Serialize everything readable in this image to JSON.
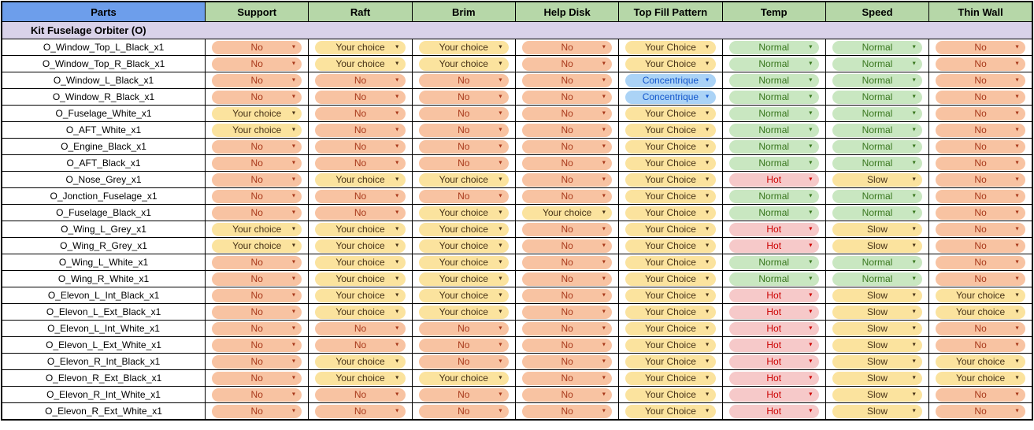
{
  "table": {
    "columns": [
      {
        "label": "Parts",
        "key": "parts"
      },
      {
        "label": "Support",
        "key": "support"
      },
      {
        "label": "Raft",
        "key": "raft"
      },
      {
        "label": "Brim",
        "key": "brim"
      },
      {
        "label": "Help Disk",
        "key": "help-disk"
      },
      {
        "label": "Top Fill Pattern",
        "key": "top-fill-pattern"
      },
      {
        "label": "Temp",
        "key": "temp"
      },
      {
        "label": "Speed",
        "key": "speed"
      },
      {
        "label": "Thin Wall",
        "key": "thin-wall"
      }
    ],
    "section_title": "Kit Fuselage Orbiter (O)",
    "rows": [
      {
        "part": "O_Window_Top_L_Black_x1",
        "cells": [
          "No",
          "Your choice",
          "Your choice",
          "No",
          "Your Choice",
          "Normal",
          "Normal",
          "No"
        ]
      },
      {
        "part": "O_Window_Top_R_Black_x1",
        "cells": [
          "No",
          "Your choice",
          "Your choice",
          "No",
          "Your Choice",
          "Normal",
          "Normal",
          "No"
        ]
      },
      {
        "part": "O_Window_L_Black_x1",
        "cells": [
          "No",
          "No",
          "No",
          "No",
          "Concentrique",
          "Normal",
          "Normal",
          "No"
        ]
      },
      {
        "part": "O_Window_R_Black_x1",
        "cells": [
          "No",
          "No",
          "No",
          "No",
          "Concentrique",
          "Normal",
          "Normal",
          "No"
        ]
      },
      {
        "part": "O_Fuselage_White_x1",
        "cells": [
          "Your choice",
          "No",
          "No",
          "No",
          "Your Choice",
          "Normal",
          "Normal",
          "No"
        ]
      },
      {
        "part": "O_AFT_White_x1",
        "cells": [
          "Your choice",
          "No",
          "No",
          "No",
          "Your Choice",
          "Normal",
          "Normal",
          "No"
        ]
      },
      {
        "part": "O_Engine_Black_x1",
        "cells": [
          "No",
          "No",
          "No",
          "No",
          "Your Choice",
          "Normal",
          "Normal",
          "No"
        ]
      },
      {
        "part": "O_AFT_Black_x1",
        "cells": [
          "No",
          "No",
          "No",
          "No",
          "Your Choice",
          "Normal",
          "Normal",
          "No"
        ]
      },
      {
        "part": "O_Nose_Grey_x1",
        "cells": [
          "No",
          "Your choice",
          "Your choice",
          "No",
          "Your Choice",
          "Hot",
          "Slow",
          "No"
        ]
      },
      {
        "part": "O_Jonction_Fuselage_x1",
        "cells": [
          "No",
          "No",
          "No",
          "No",
          "Your Choice",
          "Normal",
          "Normal",
          "No"
        ]
      },
      {
        "part": "O_Fuselage_Black_x1",
        "cells": [
          "No",
          "No",
          "Your choice",
          "Your choice",
          "Your Choice",
          "Normal",
          "Normal",
          "No"
        ]
      },
      {
        "part": "O_Wing_L_Grey_x1",
        "cells": [
          "Your choice",
          "Your choice",
          "Your choice",
          "No",
          "Your Choice",
          "Hot",
          "Slow",
          "No"
        ]
      },
      {
        "part": "O_Wing_R_Grey_x1",
        "cells": [
          "Your choice",
          "Your choice",
          "Your choice",
          "No",
          "Your Choice",
          "Hot",
          "Slow",
          "No"
        ]
      },
      {
        "part": "O_Wing_L_White_x1",
        "cells": [
          "No",
          "Your choice",
          "Your choice",
          "No",
          "Your Choice",
          "Normal",
          "Normal",
          "No"
        ]
      },
      {
        "part": "O_Wing_R_White_x1",
        "cells": [
          "No",
          "Your choice",
          "Your choice",
          "No",
          "Your Choice",
          "Normal",
          "Normal",
          "No"
        ]
      },
      {
        "part": "O_Elevon_L_Int_Black_x1",
        "cells": [
          "No",
          "Your choice",
          "Your choice",
          "No",
          "Your Choice",
          "Hot",
          "Slow",
          "Your choice"
        ]
      },
      {
        "part": "O_Elevon_L_Ext_Black_x1",
        "cells": [
          "No",
          "Your choice",
          "Your choice",
          "No",
          "Your Choice",
          "Hot",
          "Slow",
          "Your choice"
        ]
      },
      {
        "part": "O_Elevon_L_Int_White_x1",
        "cells": [
          "No",
          "No",
          "No",
          "No",
          "Your Choice",
          "Hot",
          "Slow",
          "No"
        ]
      },
      {
        "part": "O_Elevon_L_Ext_White_x1",
        "cells": [
          "No",
          "No",
          "No",
          "No",
          "Your Choice",
          "Hot",
          "Slow",
          "No"
        ]
      },
      {
        "part": "O_Elevon_R_Int_Black_x1",
        "cells": [
          "No",
          "Your choice",
          "No",
          "No",
          "Your Choice",
          "Hot",
          "Slow",
          "Your choice"
        ]
      },
      {
        "part": "O_Elevon_R_Ext_Black_x1",
        "cells": [
          "No",
          "Your choice",
          "Your choice",
          "No",
          "Your Choice",
          "Hot",
          "Slow",
          "Your choice"
        ]
      },
      {
        "part": "O_Elevon_R_Int_White_x1",
        "cells": [
          "No",
          "No",
          "No",
          "No",
          "Your Choice",
          "Hot",
          "Slow",
          "No"
        ]
      },
      {
        "part": "O_Elevon_R_Ext_White_x1",
        "cells": [
          "No",
          "No",
          "No",
          "No",
          "Your Choice",
          "Hot",
          "Slow",
          "No"
        ]
      }
    ]
  },
  "icons": {
    "dropdown_arrow": "▼"
  },
  "colors": {
    "header_parts_bg": "#6D9EEB",
    "header_settings_bg": "#B6D7A8",
    "section_bg": "#D9D2E9",
    "grid_border": "#000000",
    "chips": {
      "No": {
        "bg": "#F8C3A2",
        "fg": "#A8391B"
      },
      "Your choice": {
        "bg": "#FBE39E",
        "fg": "#473217"
      },
      "Your Choice": {
        "bg": "#FBE39E",
        "fg": "#473217"
      },
      "Slow": {
        "bg": "#FBE39E",
        "fg": "#473217"
      },
      "Concentrique": {
        "bg": "#ABD3F6",
        "fg": "#1155CC"
      },
      "Normal": {
        "bg": "#C9E7C1",
        "fg": "#38761D"
      },
      "Hot": {
        "bg": "#F6C9C9",
        "fg": "#CC0000"
      }
    }
  }
}
